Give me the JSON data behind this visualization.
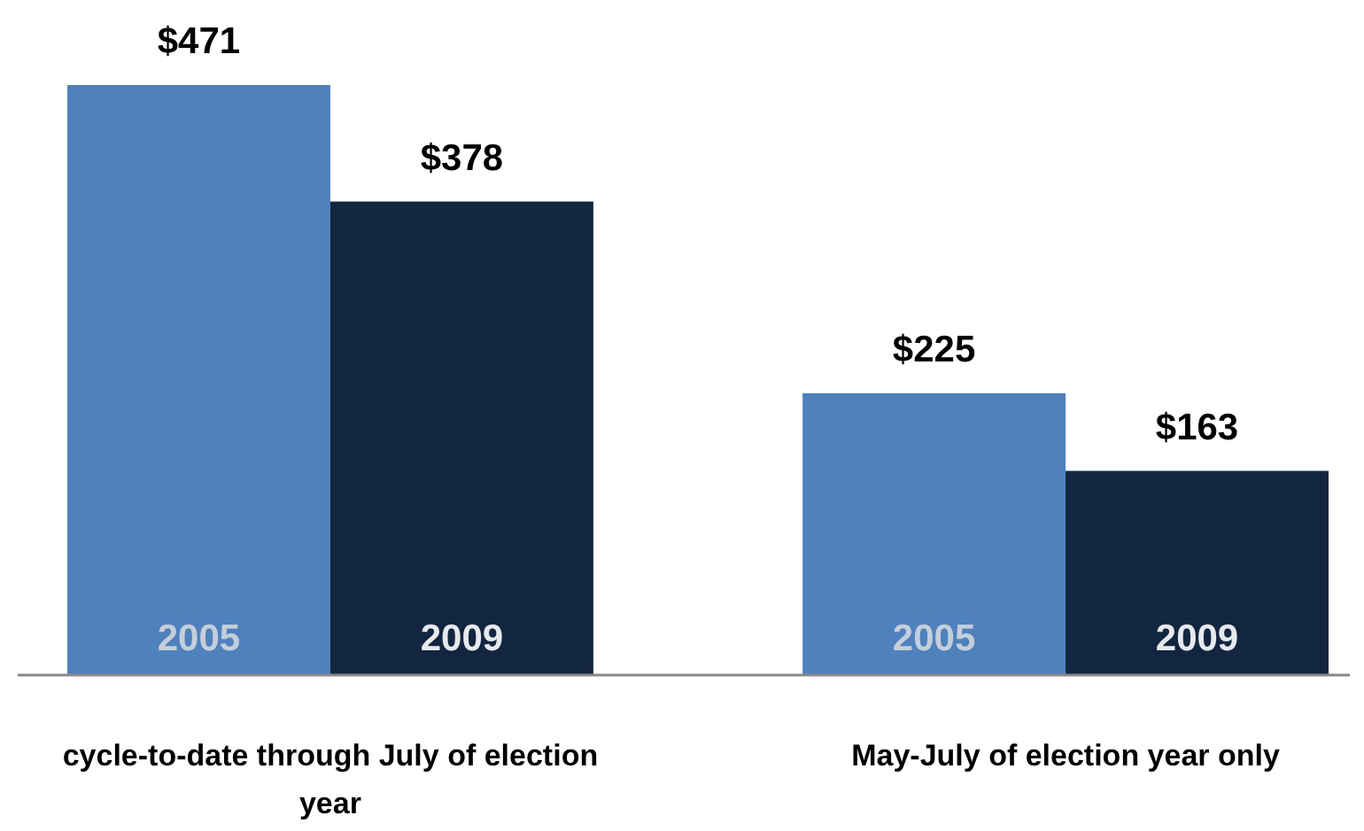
{
  "chart_data": {
    "type": "bar",
    "categories": [
      "cycle-to-date through July of election year",
      "May-July of election year only"
    ],
    "series": [
      {
        "name": "2005",
        "color": "#4f81bd",
        "values": [
          471,
          225
        ],
        "value_labels": [
          "$471",
          "$225"
        ]
      },
      {
        "name": "2009",
        "color": "#13263f",
        "values": [
          378,
          163
        ],
        "value_labels": [
          "$378",
          "$163"
        ]
      }
    ],
    "legend": false
  }
}
